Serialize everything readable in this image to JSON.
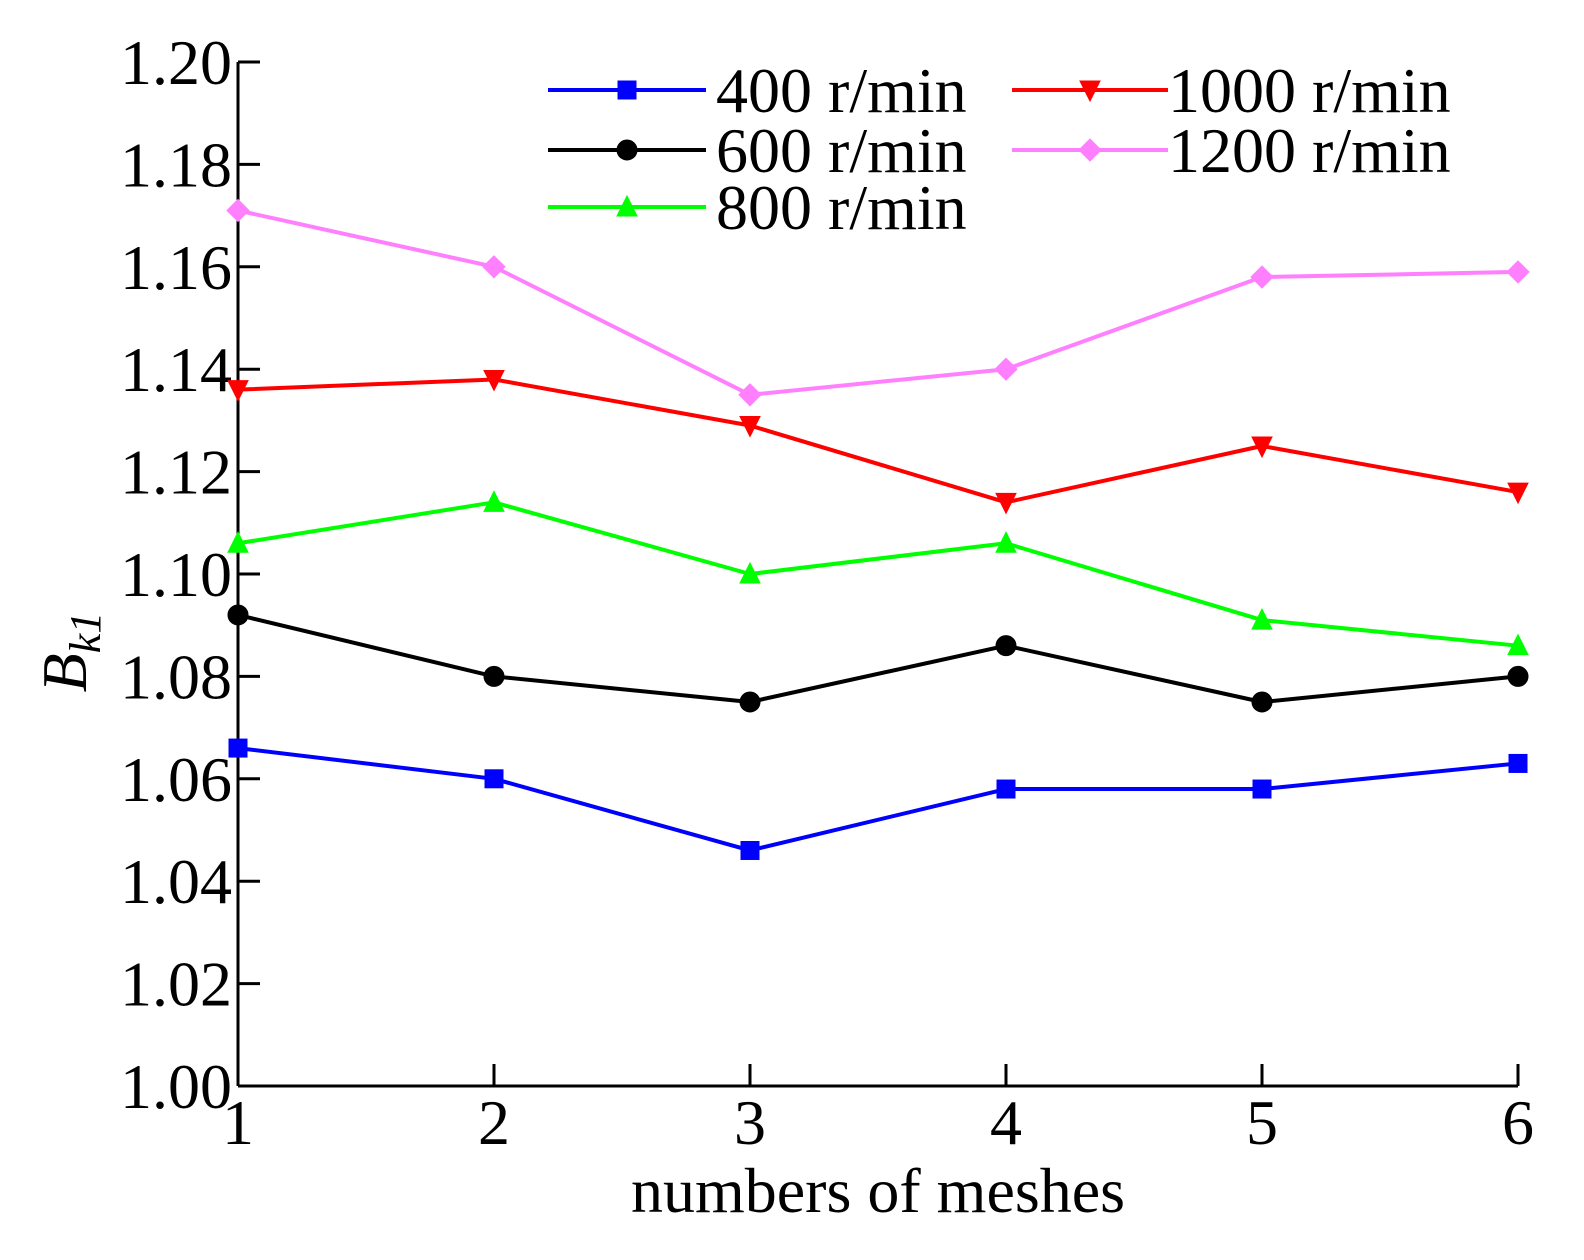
{
  "chart_data": {
    "type": "line",
    "title": "",
    "xlabel": "numbers of meshes",
    "ylabel": {
      "main": "B",
      "sub": "k1"
    },
    "x": [
      1,
      2,
      3,
      4,
      5,
      6
    ],
    "x_tick_labels": [
      "1",
      "2",
      "3",
      "4",
      "5",
      "6"
    ],
    "xlim": [
      1,
      6
    ],
    "ylim": [
      1.0,
      1.2
    ],
    "y_ticks": [
      1.0,
      1.02,
      1.04,
      1.06,
      1.08,
      1.1,
      1.12,
      1.14,
      1.16,
      1.18,
      1.2
    ],
    "y_tick_labels": [
      "1.00",
      "1.02",
      "1.04",
      "1.06",
      "1.08",
      "1.10",
      "1.12",
      "1.14",
      "1.16",
      "1.18",
      "1.20"
    ],
    "grid": false,
    "legend_position": "top-right",
    "series": [
      {
        "name": "400 r/min",
        "color": "#0000ff",
        "marker": "square",
        "values": [
          1.066,
          1.06,
          1.046,
          1.058,
          1.058,
          1.063
        ]
      },
      {
        "name": "600 r/min",
        "color": "#000000",
        "marker": "circle",
        "values": [
          1.092,
          1.08,
          1.075,
          1.086,
          1.075,
          1.08
        ]
      },
      {
        "name": "800 r/min",
        "color": "#00ff00",
        "marker": "triangle-up",
        "values": [
          1.106,
          1.114,
          1.1,
          1.106,
          1.091,
          1.086
        ]
      },
      {
        "name": "1000 r/min",
        "color": "#ff0000",
        "marker": "triangle-down",
        "values": [
          1.136,
          1.138,
          1.129,
          1.114,
          1.125,
          1.116
        ]
      },
      {
        "name": "1200 r/min",
        "color": "#ff80ff",
        "marker": "diamond",
        "values": [
          1.171,
          1.16,
          1.135,
          1.14,
          1.158,
          1.159
        ]
      }
    ]
  }
}
